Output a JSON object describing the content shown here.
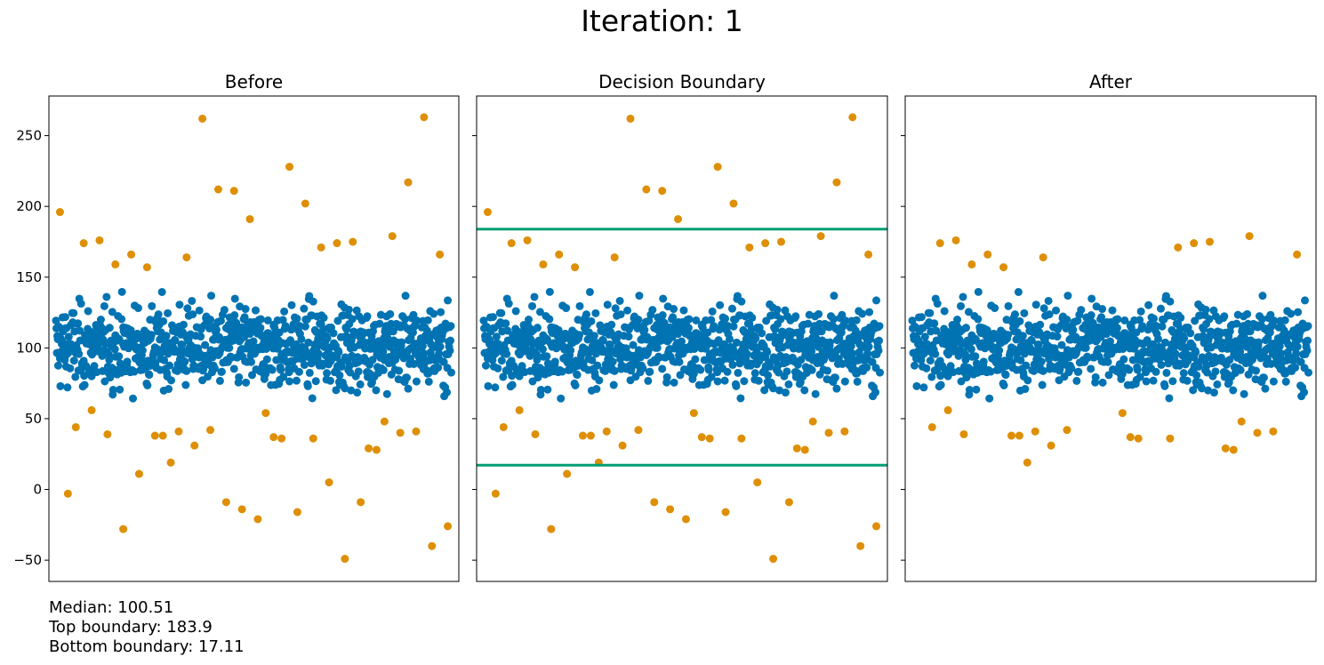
{
  "title": "Iteration: 1",
  "stats": {
    "median": "Median: 100.51",
    "top": "Top boundary: 183.9",
    "bottom": "Bottom boundary: 17.11"
  },
  "chart_data": [
    {
      "type": "scatter",
      "title": "Before",
      "ylim": [
        -65,
        278
      ],
      "y_ticks": [
        -50,
        0,
        50,
        100,
        150,
        200,
        250
      ],
      "grid": false,
      "series": [
        {
          "color": "#0173b2",
          "normal": true
        },
        {
          "color": "#de8f05",
          "outliers": true
        }
      ]
    },
    {
      "type": "scatter",
      "title": "Decision Boundary",
      "ylim": [
        -65,
        278
      ],
      "grid": false,
      "boundaries": {
        "top": 183.9,
        "bottom": 17.11,
        "color": "#029e73"
      },
      "series": [
        {
          "color": "#0173b2"
        },
        {
          "color": "#de8f05"
        }
      ]
    },
    {
      "type": "scatter",
      "title": "After",
      "ylim": [
        -65,
        278
      ],
      "grid": false,
      "series": [
        {
          "color": "#0173b2"
        },
        {
          "color": "#de8f05"
        }
      ]
    }
  ],
  "colors": {
    "inlier": "#0173b2",
    "outlier": "#de8f05",
    "boundary": "#029e73"
  },
  "outliers_y": [
    196,
    175,
    191,
    157,
    166,
    174,
    211,
    166,
    263,
    171,
    212,
    159,
    217,
    202,
    262,
    176,
    179,
    228,
    164,
    174,
    28,
    37,
    19,
    -3,
    -9,
    -21,
    38,
    -26,
    -49,
    -14,
    11,
    -40,
    5,
    -9,
    -28,
    41,
    36,
    42,
    39,
    40,
    -16,
    31,
    56,
    48,
    36,
    41,
    44,
    29,
    54,
    38
  ],
  "outliers_kept_after": [
    175,
    157,
    166,
    174,
    166,
    171,
    159,
    176,
    179,
    164,
    174,
    28,
    37,
    19,
    38,
    41,
    36,
    42,
    39,
    40,
    31,
    56,
    48,
    36,
    41,
    44,
    29,
    54,
    38
  ],
  "inliers_summary": {
    "center": 100.51,
    "spread_low": 38,
    "spread_high": 170
  }
}
